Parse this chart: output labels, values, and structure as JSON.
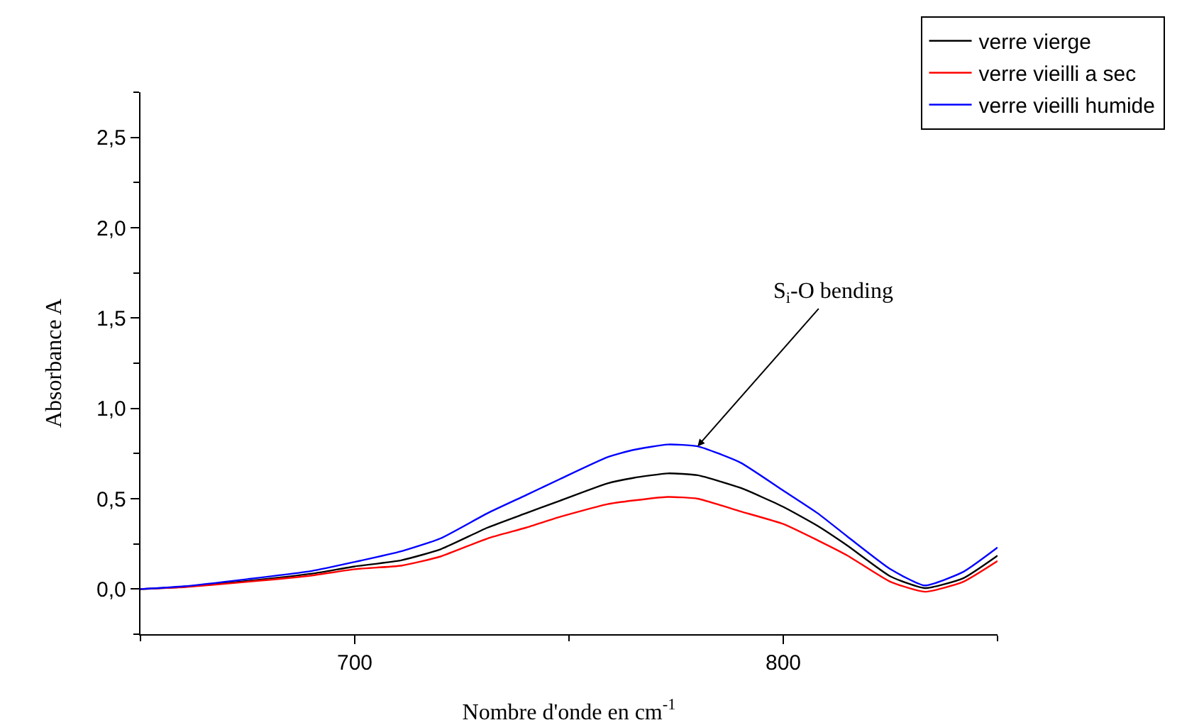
{
  "chart_data": {
    "type": "line",
    "xlabel": "Nombre d'onde en cm$^{-1}$",
    "ylabel": "Absorbance A",
    "x": [
      650,
      660,
      675,
      690,
      700,
      711,
      720,
      731,
      740,
      748,
      759,
      765,
      773,
      780,
      790,
      800,
      808,
      815,
      825,
      833,
      842,
      850
    ],
    "series": [
      {
        "name": "verre vierge",
        "color": "#000000",
        "values": [
          0,
          0.012,
          0.045,
          0.085,
          0.125,
          0.16,
          0.22,
          0.34,
          0.42,
          0.49,
          0.585,
          0.615,
          0.64,
          0.63,
          0.56,
          0.455,
          0.35,
          0.24,
          0.07,
          0.005,
          0.06,
          0.185
        ]
      },
      {
        "name": "verre vieilli a sec",
        "color": "#ff0000",
        "values": [
          0,
          0.01,
          0.04,
          0.075,
          0.11,
          0.13,
          0.18,
          0.28,
          0.34,
          0.4,
          0.47,
          0.49,
          0.51,
          0.5,
          0.43,
          0.36,
          0.27,
          0.185,
          0.04,
          -0.015,
          0.04,
          0.155
        ]
      },
      {
        "name": "verre vieilli humide",
        "color": "#0000ff",
        "values": [
          0,
          0.015,
          0.055,
          0.1,
          0.15,
          0.21,
          0.28,
          0.42,
          0.52,
          0.61,
          0.73,
          0.77,
          0.8,
          0.79,
          0.7,
          0.545,
          0.42,
          0.29,
          0.11,
          0.02,
          0.095,
          0.23
        ]
      }
    ],
    "xlim": [
      650,
      850
    ],
    "xticks": [
      700,
      800
    ],
    "ylim": [
      -0.25,
      2.75
    ],
    "yticks": [
      {
        "value": 0,
        "label": "0,0"
      },
      {
        "value": 0.5,
        "label": "0,5"
      },
      {
        "value": 1,
        "label": "1,0"
      },
      {
        "value": 1.5,
        "label": "1,5"
      },
      {
        "value": 2,
        "label": "2,0"
      },
      {
        "value": 2.5,
        "label": "2,5"
      }
    ],
    "annotations": [
      {
        "text": "S$_{i}$-O bending",
        "x": 780,
        "y": 0.79
      }
    ],
    "grid": false,
    "legend": "top right"
  }
}
